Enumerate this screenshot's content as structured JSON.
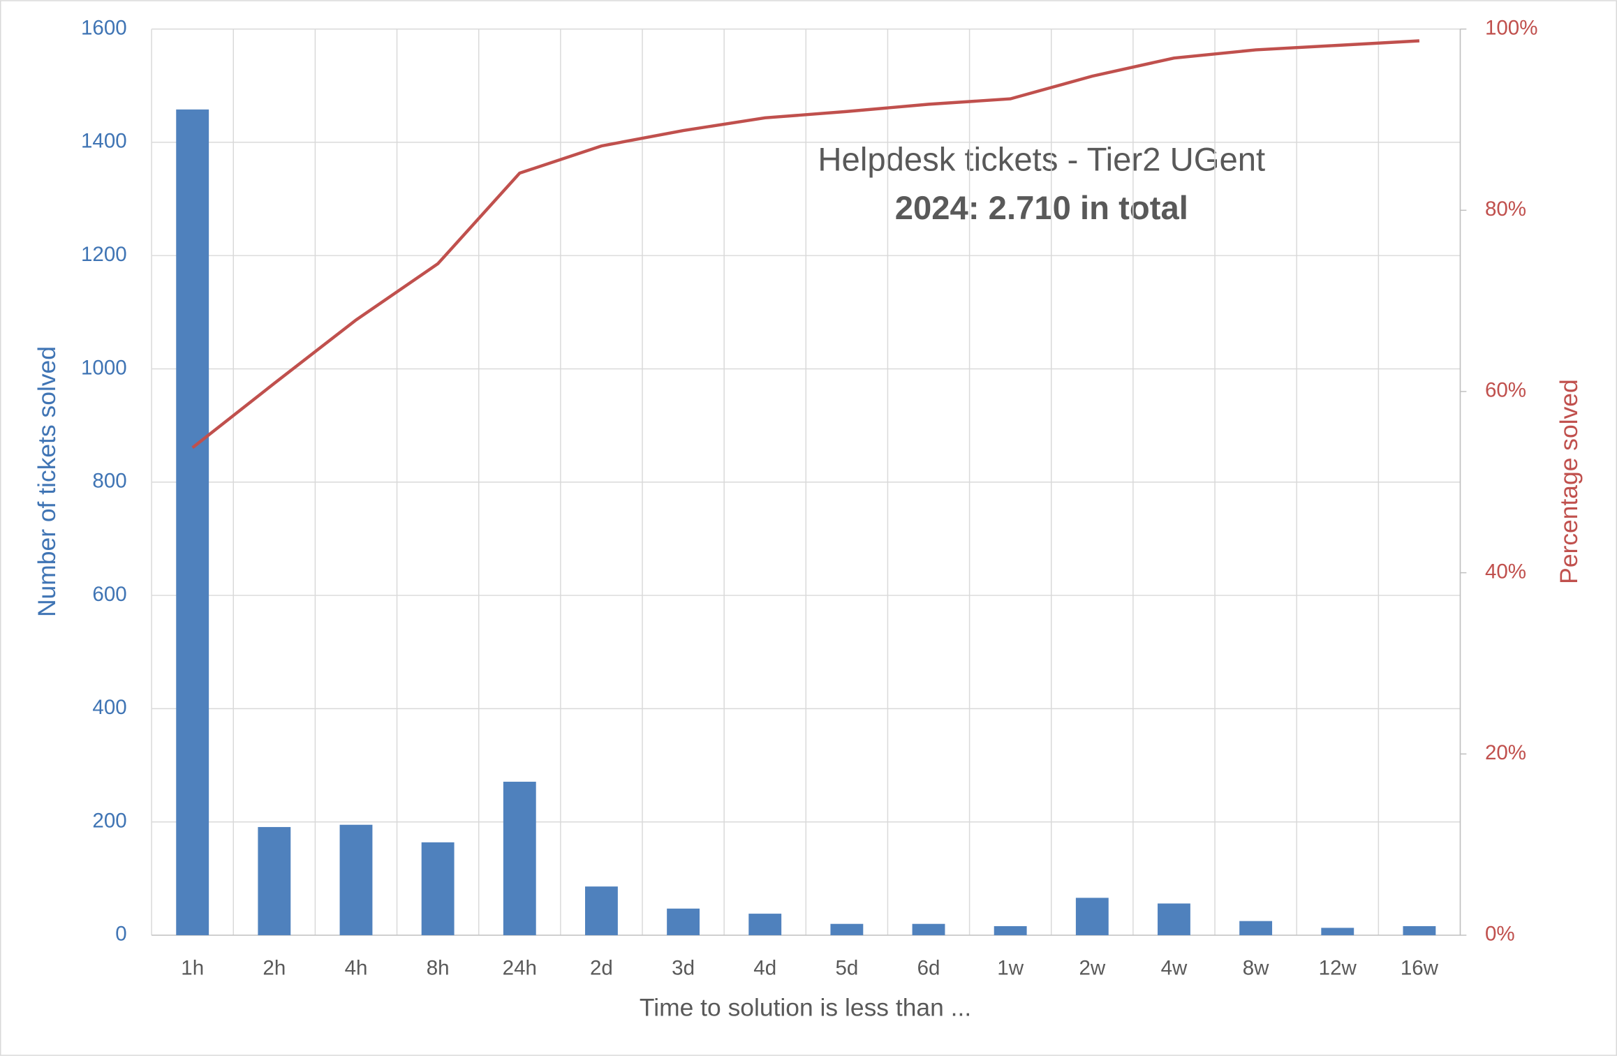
{
  "chart_data": {
    "type": "bar",
    "title": "Helpdesk tickets - Tier2 UGent",
    "subtitle": "2024: 2.710 in total",
    "x_label": "Time to solution is less than ...",
    "y_label": "Number of tickets solved",
    "y2_label": "Percentage solved",
    "categories": [
      "1h",
      "2h",
      "4h",
      "8h",
      "24h",
      "2d",
      "3d",
      "4d",
      "5d",
      "6d",
      "1w",
      "2w",
      "4w",
      "8w",
      "12w",
      "16w"
    ],
    "series": [
      {
        "type": "bar",
        "color": "#4f81bd",
        "axis": "y",
        "values": [
          1458,
          191,
          195,
          164,
          271,
          86,
          47,
          38,
          20,
          20,
          16,
          66,
          56,
          25,
          13,
          16
        ]
      },
      {
        "type": "line",
        "color": "#c0504d",
        "axis": "y2",
        "values": [
          53.8,
          60.9,
          67.9,
          74.1,
          84.1,
          87.1,
          88.8,
          90.2,
          90.9,
          91.7,
          92.3,
          94.8,
          96.8,
          97.7,
          98.2,
          98.7
        ]
      }
    ],
    "ylim": [
      0,
      1600
    ],
    "yticks": [
      0,
      200,
      400,
      600,
      800,
      1000,
      1200,
      1400,
      1600
    ],
    "y2lim": [
      0,
      100
    ],
    "y2ticks": [
      {
        "value": 0,
        "label": "0%"
      },
      {
        "value": 20,
        "label": "20%"
      },
      {
        "value": 40,
        "label": "40%"
      },
      {
        "value": 60,
        "label": "60%"
      },
      {
        "value": 80,
        "label": "80%"
      },
      {
        "value": 100,
        "label": "100%"
      }
    ],
    "y_color": "#3f74b4",
    "y2_color": "#c0504d",
    "grid": true
  }
}
